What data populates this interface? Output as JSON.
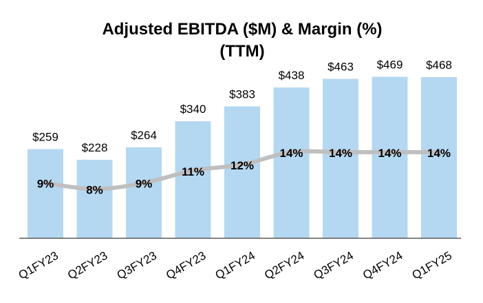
{
  "chart_data": {
    "type": "bar",
    "title": "Adjusted EBITDA ($M) & Margin (%)",
    "subtitle": "(TTM)",
    "categories": [
      "Q1FY23",
      "Q2FY23",
      "Q3FY23",
      "Q4FY23",
      "Q1FY24",
      "Q2FY24",
      "Q3FY24",
      "Q4FY24",
      "Q1FY25"
    ],
    "series": [
      {
        "name": "Adjusted EBITDA ($M)",
        "type": "bar",
        "values": [
          259,
          228,
          264,
          340,
          383,
          438,
          463,
          469,
          468
        ],
        "labels": [
          "$259",
          "$228",
          "$264",
          "$340",
          "$383",
          "$438",
          "$463",
          "$469",
          "$468"
        ],
        "color": "#b4d8f2"
      },
      {
        "name": "Margin (%)",
        "type": "line",
        "values": [
          9,
          8,
          9,
          11,
          12,
          14,
          14,
          14,
          14
        ],
        "labels": [
          "9%",
          "8%",
          "9%",
          "11%",
          "12%",
          "14%",
          "14%",
          "14%",
          "14%"
        ],
        "color": "#bfbfbf"
      }
    ],
    "ylim": [
      0,
      500
    ],
    "margin_ylim": [
      0,
      28
    ],
    "xlabel": "",
    "ylabel": "",
    "grid": false,
    "legend": "none",
    "axis_color": "#595959"
  }
}
